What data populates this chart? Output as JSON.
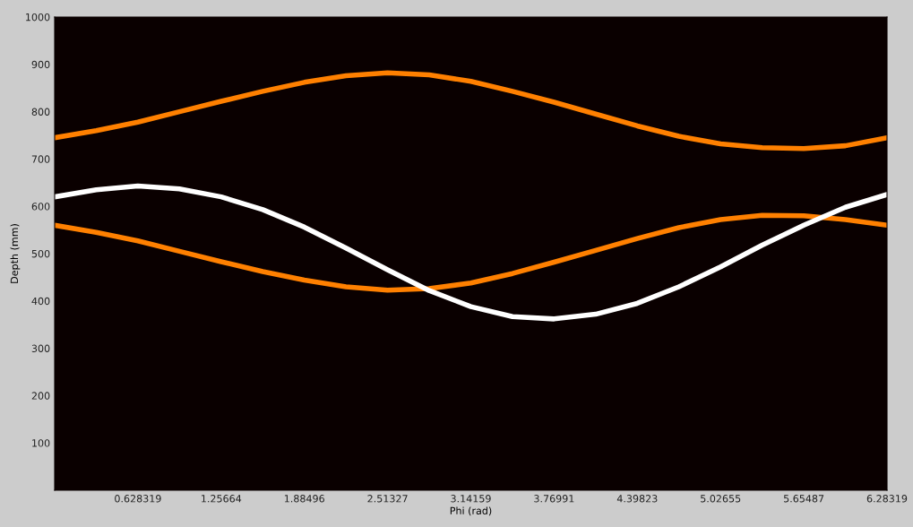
{
  "chart_data": {
    "type": "line",
    "xlabel": "Phi (rad)",
    "ylabel": "Depth (mm)",
    "x": [
      0,
      0.314,
      0.628,
      0.942,
      1.257,
      1.571,
      1.885,
      2.199,
      2.513,
      2.827,
      3.142,
      3.456,
      3.77,
      4.084,
      4.398,
      4.712,
      5.027,
      5.341,
      5.655,
      5.969,
      6.283
    ],
    "series": [
      {
        "color": "#ff8000",
        "values": [
          745,
          760,
          778,
          800,
          822,
          843,
          862,
          876,
          882,
          878,
          864,
          843,
          820,
          795,
          770,
          748,
          732,
          724,
          722,
          728,
          745
        ]
      },
      {
        "color": "#ff8000",
        "values": [
          560,
          545,
          527,
          505,
          483,
          462,
          444,
          430,
          423,
          426,
          438,
          458,
          482,
          507,
          532,
          555,
          572,
          581,
          580,
          572,
          560
        ]
      },
      {
        "color": "#ffffff",
        "values": [
          620,
          635,
          643,
          637,
          620,
          593,
          556,
          512,
          466,
          422,
          388,
          367,
          362,
          372,
          395,
          430,
          472,
          518,
          560,
          598,
          625
        ]
      }
    ],
    "xlim": [
      0,
      6.28319
    ],
    "ylim": [
      0,
      1000
    ],
    "xticks": [
      0.628319,
      1.25664,
      1.88496,
      2.51327,
      3.14159,
      3.76991,
      4.39823,
      5.02655,
      5.65487,
      6.28319
    ],
    "yticks": [
      100,
      200,
      300,
      400,
      500,
      600,
      700,
      800,
      900,
      1000
    ],
    "grid": false
  }
}
